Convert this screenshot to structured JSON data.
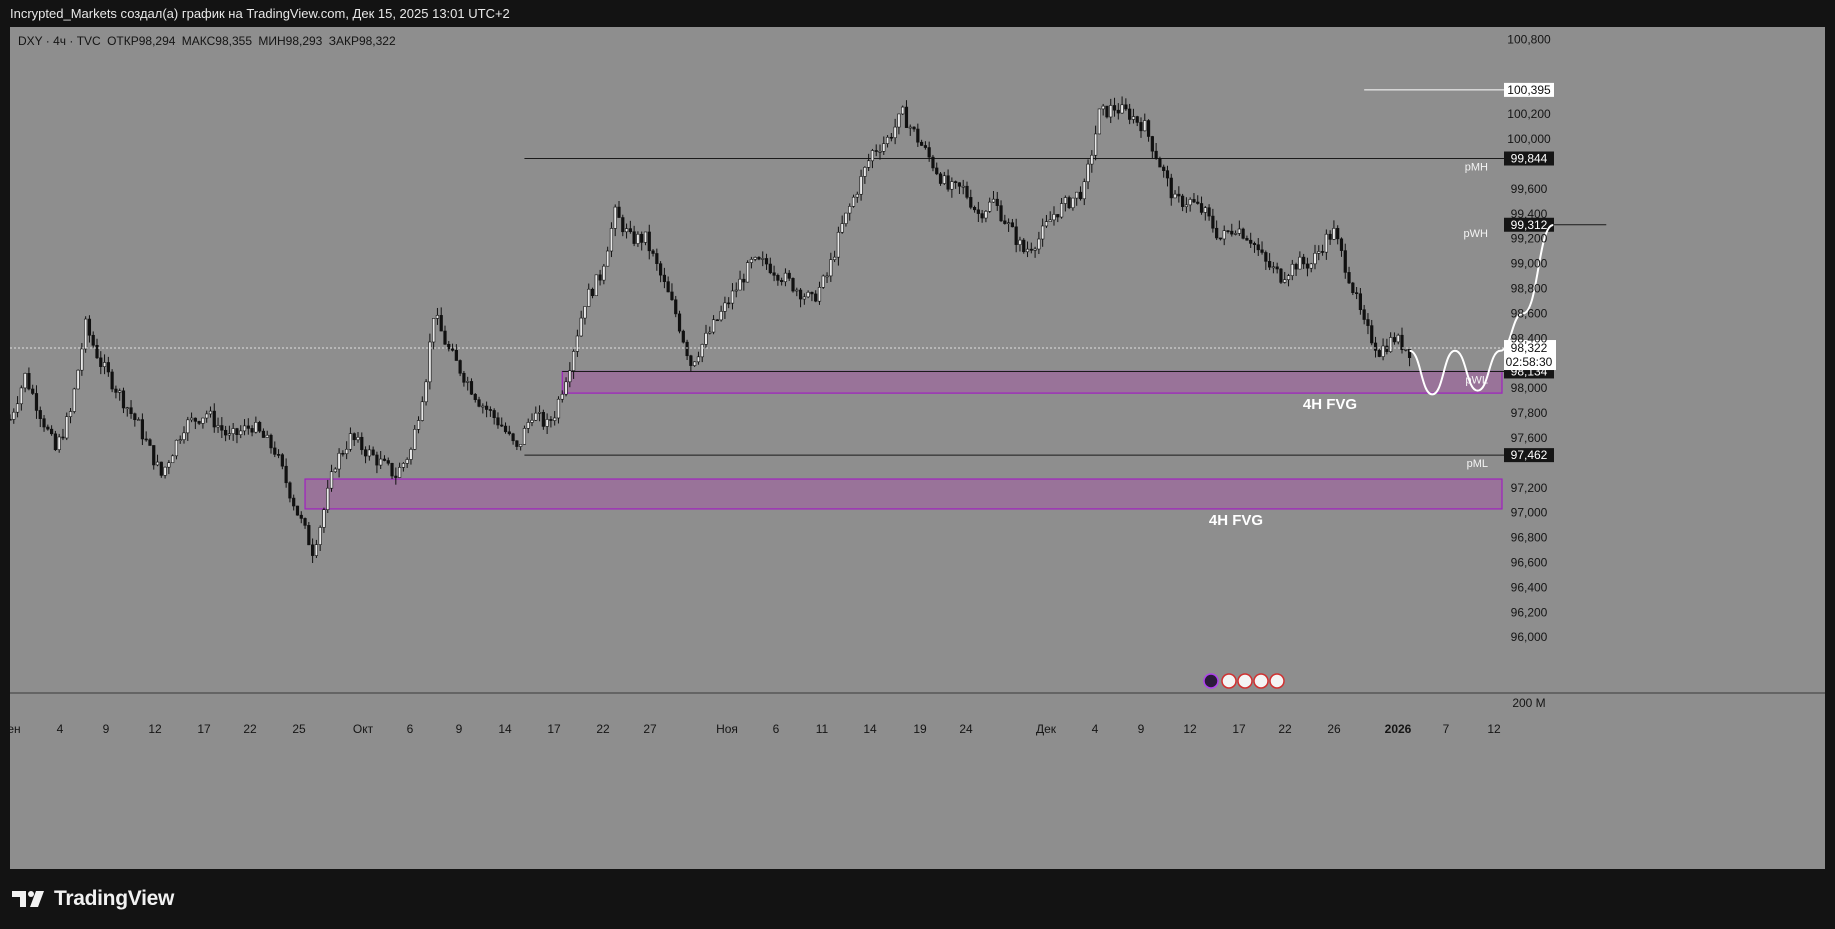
{
  "header": {
    "attribution": "Incrypted_Markets создал(а) график на TradingView.com, Дек 15, 2025 13:01 UTC+2"
  },
  "symbol_info": {
    "symbol": "DXY · 4ч · TVC",
    "open": "ОТКР98,294",
    "high": "МАКС98,355",
    "low": "МИН98,293",
    "close": "ЗАКР98,322"
  },
  "footer": {
    "brand": "TradingView"
  },
  "colors": {
    "background": "#8e8e8e",
    "candle": "#111111",
    "fvg_fill": "#9b6f9b",
    "fvg_border": "#a020c0",
    "projection": "#ffffff"
  },
  "chart_data": {
    "type": "candlestick",
    "symbol": "DXY",
    "timeframe": "4ч",
    "ylim": [
      95.6,
      100.9
    ],
    "y_ticks": [
      "100,800",
      "100,200",
      "100,000",
      "99,600",
      "99,400",
      "99,200",
      "99,000",
      "98,800",
      "98,600",
      "98,400",
      "98,000",
      "97,800",
      "97,600",
      "97,200",
      "97,000",
      "96,800",
      "96,600",
      "96,400",
      "96,200",
      "96,000"
    ],
    "x_ticks": [
      "ен",
      "4",
      "9",
      "12",
      "17",
      "22",
      "25",
      "Окт",
      "6",
      "9",
      "14",
      "17",
      "22",
      "27",
      "Ноя",
      "6",
      "11",
      "14",
      "19",
      "24",
      "Дек",
      "4",
      "9",
      "12",
      "17",
      "22",
      "26",
      "2026",
      "7",
      "12"
    ],
    "volume_label": "200 M",
    "price_path": [
      [
        0,
        97.75
      ],
      [
        2,
        98.1
      ],
      [
        4,
        97.8
      ],
      [
        6,
        97.5
      ],
      [
        8,
        97.8
      ],
      [
        10,
        98.5
      ],
      [
        12,
        98.2
      ],
      [
        14,
        98.0
      ],
      [
        17,
        97.7
      ],
      [
        20,
        97.3
      ],
      [
        23,
        97.7
      ],
      [
        26,
        97.8
      ],
      [
        29,
        97.6
      ],
      [
        32,
        97.7
      ],
      [
        35,
        97.5
      ],
      [
        38,
        97.0
      ],
      [
        40,
        96.7
      ],
      [
        41,
        96.9
      ],
      [
        43,
        97.4
      ],
      [
        45,
        97.6
      ],
      [
        47,
        97.5
      ],
      [
        49,
        97.4
      ],
      [
        51,
        97.3
      ],
      [
        53,
        97.5
      ],
      [
        55,
        98.1
      ],
      [
        56,
        98.6
      ],
      [
        58,
        98.3
      ],
      [
        60,
        98.1
      ],
      [
        62,
        97.9
      ],
      [
        65,
        97.7
      ],
      [
        67,
        97.5
      ],
      [
        69,
        97.8
      ],
      [
        71,
        97.7
      ],
      [
        72,
        97.8
      ],
      [
        74,
        98.2
      ],
      [
        76,
        98.7
      ],
      [
        78,
        98.9
      ],
      [
        80,
        99.4
      ],
      [
        82,
        99.2
      ],
      [
        84,
        99.2
      ],
      [
        86,
        98.9
      ],
      [
        88,
        98.6
      ],
      [
        90,
        98.2
      ],
      [
        92,
        98.4
      ],
      [
        94,
        98.6
      ],
      [
        96,
        98.8
      ],
      [
        98,
        99.0
      ],
      [
        100,
        99.0
      ],
      [
        102,
        98.9
      ],
      [
        104,
        98.8
      ],
      [
        106,
        98.7
      ],
      [
        108,
        98.9
      ],
      [
        110,
        99.3
      ],
      [
        112,
        99.6
      ],
      [
        114,
        99.9
      ],
      [
        116,
        100.0
      ],
      [
        118,
        100.2
      ],
      [
        120,
        100.0
      ],
      [
        122,
        99.8
      ],
      [
        124,
        99.6
      ],
      [
        126,
        99.6
      ],
      [
        128,
        99.4
      ],
      [
        130,
        99.5
      ],
      [
        132,
        99.3
      ],
      [
        134,
        99.1
      ],
      [
        136,
        99.2
      ],
      [
        138,
        99.4
      ],
      [
        140,
        99.5
      ],
      [
        142,
        99.6
      ],
      [
        144,
        100.2
      ],
      [
        146,
        100.25
      ],
      [
        148,
        100.2
      ],
      [
        150,
        100.1
      ],
      [
        152,
        99.8
      ],
      [
        154,
        99.5
      ],
      [
        156,
        99.5
      ],
      [
        158,
        99.4
      ],
      [
        160,
        99.2
      ],
      [
        162,
        99.3
      ],
      [
        164,
        99.2
      ],
      [
        166,
        99.0
      ],
      [
        168,
        98.9
      ],
      [
        170,
        99.0
      ],
      [
        172,
        99.0
      ],
      [
        174,
        99.2
      ],
      [
        175,
        99.25
      ],
      [
        177,
        98.9
      ],
      [
        179,
        98.5
      ],
      [
        181,
        98.3
      ],
      [
        183,
        98.4
      ],
      [
        185,
        98.3
      ]
    ],
    "levels": [
      {
        "label": "pMH",
        "value": 99.844
      },
      {
        "label": "pWH",
        "value": 99.312
      },
      {
        "label": "pWL",
        "value": 98.134
      },
      {
        "label": "pML",
        "value": 97.462
      },
      {
        "label": "",
        "value": 100.395
      }
    ],
    "zones": [
      {
        "label": "4H FVG",
        "top": 98.134,
        "bottom": 97.96
      },
      {
        "label": "4H FVG",
        "top": 97.27,
        "bottom": 97.03
      }
    ],
    "current_price": "98,322",
    "countdown": "02:58:30",
    "projection": [
      [
        185,
        98.3
      ],
      [
        188,
        97.95
      ],
      [
        191,
        98.3
      ],
      [
        194,
        97.98
      ],
      [
        197,
        98.3
      ],
      [
        200,
        98.6
      ],
      [
        204,
        99.31
      ]
    ]
  }
}
